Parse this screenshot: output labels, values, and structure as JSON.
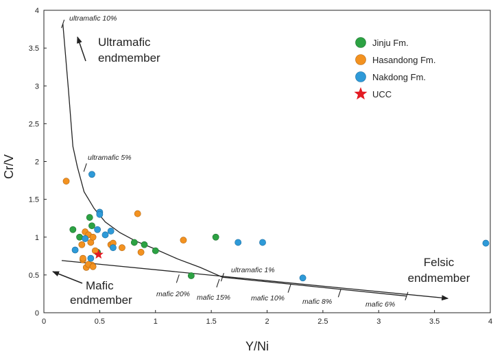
{
  "chart_data": {
    "type": "scatter",
    "xlabel": "Y/Ni",
    "ylabel": "Cr/V",
    "xlim": [
      0,
      4
    ],
    "ylim": [
      0,
      4
    ],
    "xticks": [
      0,
      0.5,
      1,
      1.5,
      2,
      2.5,
      3,
      3.5,
      4
    ],
    "yticks": [
      0,
      0.5,
      1,
      1.5,
      2,
      2.5,
      3,
      3.5,
      4
    ],
    "xtick_labels": [
      "0",
      "0.5",
      "1",
      "1.5",
      "2",
      "2.5",
      "3",
      "3.5",
      "4"
    ],
    "ytick_labels": [
      "0",
      "0.5",
      "1",
      "1.5",
      "2",
      "2.5",
      "3",
      "3.5",
      "4"
    ],
    "grid": false,
    "legend_position": "top-right",
    "series": [
      {
        "name": "Jinju Fm.",
        "color": "#2ca243",
        "marker": "circle",
        "x": [
          0.26,
          0.32,
          0.41,
          0.43,
          0.48,
          0.81,
          0.9,
          1.0,
          1.32,
          1.54
        ],
        "y": [
          1.1,
          1.0,
          1.26,
          1.15,
          0.8,
          0.93,
          0.9,
          0.82,
          0.49,
          1.0
        ]
      },
      {
        "name": "Hasandong Fm.",
        "color": "#f39220",
        "marker": "circle",
        "x": [
          0.2,
          0.34,
          0.35,
          0.37,
          0.4,
          0.42,
          0.44,
          0.38,
          0.43,
          0.35,
          0.4,
          0.44,
          0.46,
          0.6,
          0.62,
          0.7,
          0.84,
          0.87,
          1.25
        ],
        "y": [
          1.74,
          0.9,
          0.7,
          1.07,
          1.03,
          0.93,
          1.0,
          0.6,
          0.63,
          0.72,
          0.64,
          0.61,
          0.82,
          0.9,
          0.92,
          0.86,
          1.31,
          0.8,
          0.96
        ]
      },
      {
        "name": "Nakdong Fm.",
        "color": "#2e9ad8",
        "marker": "circle",
        "x": [
          0.43,
          0.28,
          0.37,
          0.42,
          0.48,
          0.5,
          0.5,
          0.55,
          0.6,
          0.62,
          1.74,
          1.96,
          2.32,
          3.96
        ],
        "y": [
          1.83,
          0.83,
          0.98,
          0.72,
          1.1,
          1.33,
          1.3,
          1.03,
          1.08,
          0.86,
          0.93,
          0.93,
          0.46,
          0.92
        ]
      },
      {
        "name": "UCC",
        "color": "#e31b23",
        "marker": "star",
        "x": [
          0.49
        ],
        "y": [
          0.77
        ]
      }
    ],
    "curves": [
      {
        "name": "ultramafic mixing curve",
        "x": [
          0.17,
          0.22,
          0.26,
          0.3,
          0.36,
          0.45,
          0.55,
          0.68,
          0.82,
          1.0,
          1.2,
          1.4,
          1.6
        ],
        "y": [
          3.82,
          2.95,
          2.2,
          1.93,
          1.6,
          1.38,
          1.2,
          1.06,
          0.95,
          0.84,
          0.71,
          0.6,
          0.47
        ]
      },
      {
        "name": "mafic-felsic mixing line",
        "x": [
          0.16,
          3.62
        ],
        "y": [
          0.69,
          0.19
        ],
        "arrow_end": true
      },
      {
        "name": "lower mixing line",
        "x": [
          1.6,
          3.25
        ],
        "y": [
          0.47,
          0.22
        ]
      }
    ],
    "curve_ticks": [
      {
        "x": 0.17,
        "y": 3.82
      },
      {
        "x": 0.37,
        "y": 1.92
      },
      {
        "x": 1.6,
        "y": 0.47
      },
      {
        "x": 1.2,
        "y": 0.45
      },
      {
        "x": 1.56,
        "y": 0.39
      },
      {
        "x": 2.2,
        "y": 0.32
      },
      {
        "x": 2.65,
        "y": 0.26
      },
      {
        "x": 3.25,
        "y": 0.22
      }
    ],
    "annotations": {
      "ultramafic_10": "ultramafic 10%",
      "ultramafic_5": "ultramafic 5%",
      "ultramafic_1": "ultramafic 1%",
      "mafic_20": "mafic 20%",
      "mafic_15": "mafic 15%",
      "mafic_10": "mafic 10%",
      "mafic_8": "mafic 8%",
      "mafic_6": "mafic 6%",
      "ultramafic_end_1": "Ultramafic",
      "ultramafic_end_2": "endmember",
      "mafic_end_1": "Mafic",
      "mafic_end_2": "endmember",
      "felsic_end_1": "Felsic",
      "felsic_end_2": "endmember"
    }
  }
}
